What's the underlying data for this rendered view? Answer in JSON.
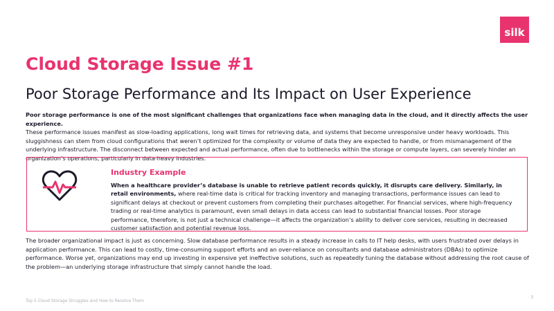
{
  "logo": "silk",
  "header": {
    "title": "Cloud Storage Issue #1",
    "subtitle": "Poor Storage Performance and Its Impact on User Experience"
  },
  "intro": {
    "bold": "Poor storage performance is one of the most significant challenges that organizations face when managing data in the cloud, and it directly affects the user experience.",
    "text": "These performance issues manifest as slow-loading applications, long wait times for retrieving data, and systems that become unresponsive under heavy workloads. This sluggishness can stem from cloud configurations that weren’t optimized for the complexity or volume of data they are expected to handle, or from mismanagement of the underlying infrastructure. The disconnect between expected and actual performance, often due to bottlenecks within the storage or compute layers, can severely hinder an organization’s operations, particularly in data-heavy industries."
  },
  "example": {
    "heading": "Industry Example",
    "bold": "When a healthcare provider’s database is unable to retrieve patient records quickly, it disrupts care delivery. Similarly, in retail environments,",
    "text": "where real-time data is critical for tracking inventory and managing transactions, performance issues can lead to significant delays at checkout or prevent customers from completing their purchases altogether. For financial services, where high-frequency trading or real-time analytics is paramount, even small delays in data access can lead to substantial financial losses. Poor storage performance, therefore, is not just a technical challenge—it affects the organization’s ability to deliver core services, resulting in decreased customer satisfaction and potential revenue loss."
  },
  "closing": "The broader organizational impact is just as concerning. Slow database performance results in a steady increase in calls to IT help desks, with users frustrated over delays in application performance. This can lead to costly, time-consuming support efforts and an over-reliance on consultants and database administrators (DBAs) to optimize performance. Worse yet, organizations may end up investing in expensive yet ineffective solutions, such as repeatedly tuning the database without addressing the root cause of the problem—an underlying storage infrastructure that simply cannot handle the load.",
  "footer": {
    "text": "Top 5 Cloud Storage Struggles and How to Resolve Them",
    "page": "3"
  }
}
